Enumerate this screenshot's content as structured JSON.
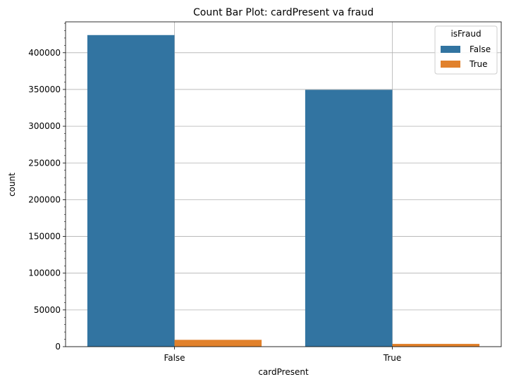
{
  "chart_data": {
    "type": "bar",
    "title": "Count Bar Plot: cardPresent va fraud",
    "xlabel": "cardPresent",
    "ylabel": "count",
    "categories": [
      "False",
      "True"
    ],
    "series": [
      {
        "name": "False",
        "values": [
          424000,
          349500
        ]
      },
      {
        "name": "True",
        "values": [
          9300,
          3800
        ]
      }
    ],
    "ylim": [
      0,
      442000
    ],
    "yticks": [
      0,
      50000,
      100000,
      150000,
      200000,
      250000,
      300000,
      350000,
      400000
    ],
    "ytick_labels": [
      "0",
      "50000",
      "100000",
      "150000",
      "200000",
      "250000",
      "300000",
      "350000",
      "400000"
    ],
    "grid": true,
    "legend": {
      "title": "isFraud",
      "position": "top-right"
    },
    "colors": [
      "#3274a1",
      "#e1812c"
    ]
  }
}
